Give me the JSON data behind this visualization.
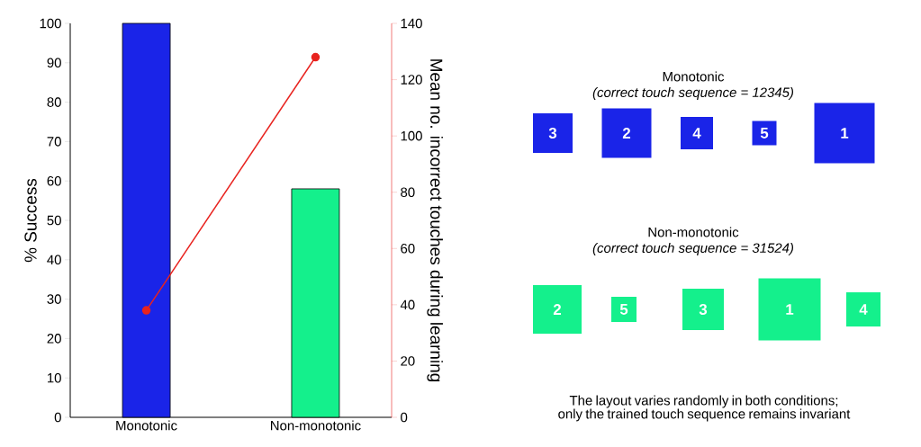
{
  "chart_data": [
    {
      "type": "bar",
      "categories": [
        "Monotonic",
        "Non-monotonic"
      ],
      "ylabel": "% Success",
      "y2label": "Mean no. incorrect touches during learning",
      "ylim": [
        0,
        100
      ],
      "yticks": [
        0,
        10,
        20,
        30,
        40,
        50,
        60,
        70,
        80,
        90,
        100
      ],
      "y2lim": [
        0,
        140
      ],
      "y2ticks": [
        0,
        20,
        40,
        60,
        80,
        100,
        120,
        140
      ],
      "marker": "circle",
      "series": [
        {
          "type": "bar",
          "colors": [
            "#1a24e8",
            "#14f08c"
          ],
          "values": [
            100,
            58
          ]
        },
        {
          "type": "line",
          "axis": "y2",
          "color": "#e8231f",
          "values": [
            38,
            128
          ]
        }
      ]
    },
    {
      "type": "other",
      "annotations": [
        "Monotonic",
        "(correct touch sequence = 12345)",
        "3",
        "2",
        "4",
        "5",
        "1",
        "Non-monotonic",
        "(correct touch sequence = 31524)",
        "2",
        "5",
        "3",
        "1",
        "4",
        "The layout varies randomly in both conditions; only the trained touch sequence remains invariant"
      ]
    }
  ]
}
